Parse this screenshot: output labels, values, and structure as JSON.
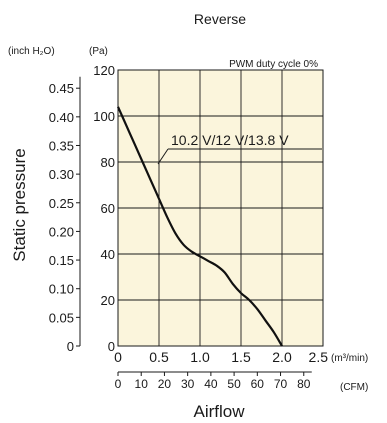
{
  "chart_data": {
    "type": "line",
    "title": "Reverse",
    "annotation": "PWM duty cycle 0%",
    "series": [
      {
        "name": "10.2 V/12 V/13.8 V",
        "points": [
          [
            0.0,
            104
          ],
          [
            0.1,
            96
          ],
          [
            0.2,
            88
          ],
          [
            0.3,
            80
          ],
          [
            0.4,
            72
          ],
          [
            0.5,
            64
          ],
          [
            0.6,
            56
          ],
          [
            0.7,
            49
          ],
          [
            0.8,
            44
          ],
          [
            0.9,
            41
          ],
          [
            1.0,
            39
          ],
          [
            1.1,
            37
          ],
          [
            1.2,
            35
          ],
          [
            1.3,
            32
          ],
          [
            1.4,
            27
          ],
          [
            1.5,
            23
          ],
          [
            1.6,
            20
          ],
          [
            1.7,
            16
          ],
          [
            1.8,
            11
          ],
          [
            1.9,
            6
          ],
          [
            2.0,
            0
          ]
        ]
      }
    ],
    "xaxis": {
      "label": "Airflow",
      "unit": "(m³/min)",
      "ticks": [
        "0",
        "0.5",
        "1.0",
        "1.5",
        "2.0",
        "2.5"
      ],
      "range": [
        0,
        2.5
      ],
      "cfm_unit": "(CFM)",
      "cfm_ticks": [
        "0",
        "10",
        "20",
        "30",
        "40",
        "50",
        "60",
        "70",
        "80"
      ]
    },
    "yaxis": {
      "label": "Static pressure",
      "pa_unit": "(Pa)",
      "pa_ticks": [
        "0",
        "20",
        "40",
        "60",
        "80",
        "100",
        "120"
      ],
      "range": [
        0,
        120
      ],
      "inch_unit": "(inch H₂O)",
      "inch_ticks": [
        "0",
        "0.05",
        "0.10",
        "0.15",
        "0.20",
        "0.25",
        "0.30",
        "0.35",
        "0.40",
        "0.45"
      ]
    },
    "grid": true,
    "colors": {
      "plot_bg": "#fbf5dc",
      "grid": "#1a1a1a",
      "curve": "#111111"
    }
  }
}
